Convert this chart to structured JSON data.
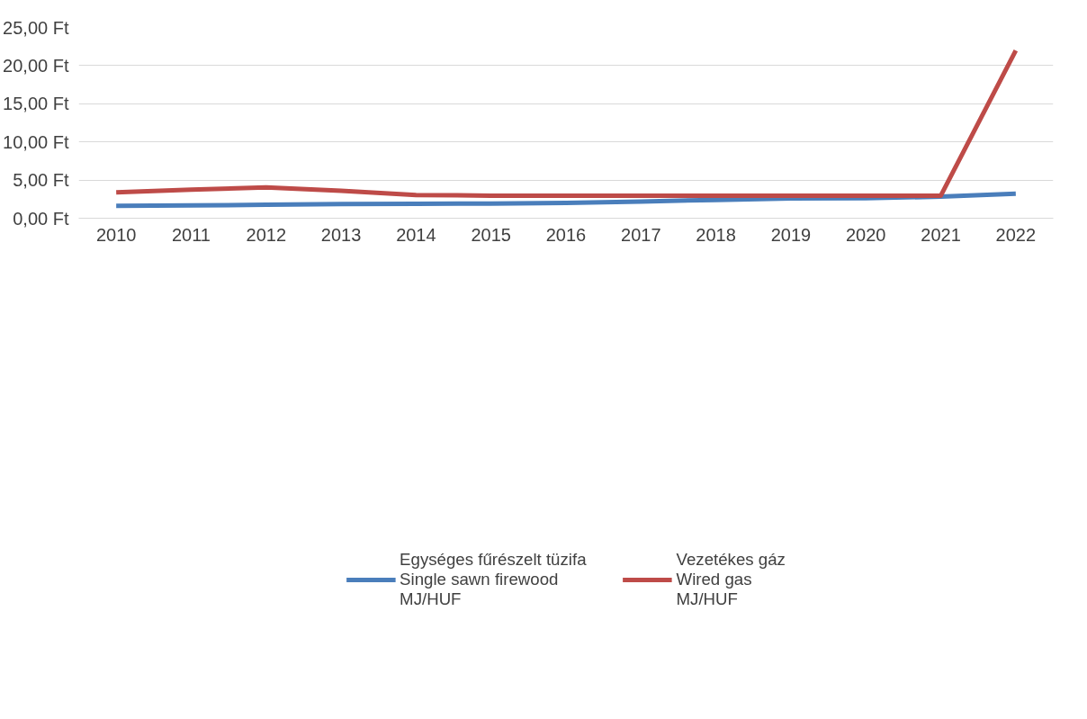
{
  "chart_data": {
    "type": "line",
    "categories": [
      "2010",
      "2011",
      "2012",
      "2013",
      "2014",
      "2015",
      "2016",
      "2017",
      "2018",
      "2019",
      "2020",
      "2021",
      "2022"
    ],
    "series": [
      {
        "name": "Egységes fűrészelt tüzifa\nSingle sawn firewood\nMJ/HUF",
        "color": "#4a7ebb",
        "values": [
          1.63,
          1.68,
          1.76,
          1.85,
          1.89,
          1.93,
          2.0,
          2.19,
          2.4,
          2.58,
          2.62,
          2.83,
          3.22
        ]
      },
      {
        "name": "Vezetékes gáz\nWired gas\nMJ/HUF",
        "color": "#be4b48",
        "values": [
          3.39,
          3.74,
          4.04,
          3.61,
          3.05,
          2.96,
          2.96,
          2.96,
          2.96,
          2.96,
          2.96,
          2.96,
          21.99
        ]
      }
    ],
    "ylim": [
      0,
      25
    ],
    "yticks": [
      {
        "value": 0,
        "label": "0,00 Ft"
      },
      {
        "value": 5,
        "label": "5,00 Ft"
      },
      {
        "value": 10,
        "label": "10,00 Ft"
      },
      {
        "value": 15,
        "label": "15,00 Ft"
      },
      {
        "value": 20,
        "label": "20,00 Ft"
      },
      {
        "value": 25,
        "label": "25,00 Ft"
      }
    ],
    "grid": "y",
    "legend": "bottom",
    "marker": "none",
    "line_style": "solid"
  }
}
